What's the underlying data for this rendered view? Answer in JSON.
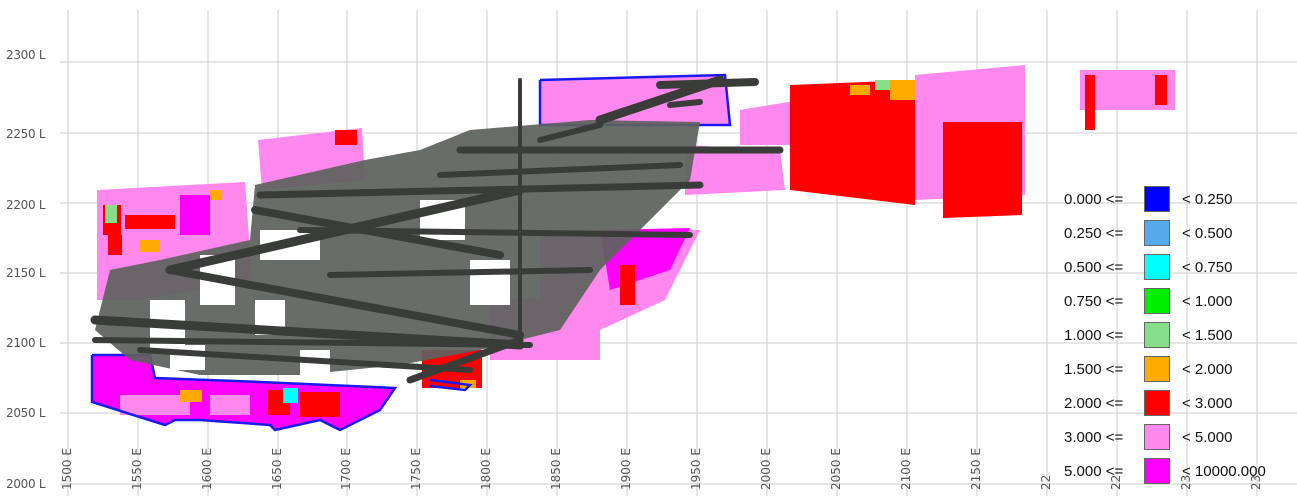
{
  "y_axis_labels": [
    "2300 L",
    "2250 L",
    "2200 L",
    "2150 L",
    "2100 L",
    "2050 L",
    "2000 L"
  ],
  "x_axis_labels": [
    "1500 E",
    "1550 E",
    "1600 E",
    "1650 E",
    "1700 E",
    "1750 E",
    "1800 E",
    "1850 E",
    "1900 E",
    "1950 E",
    "2000 E",
    "2050 E",
    "2100 E",
    "2150 E",
    "22",
    "22",
    "23",
    "23"
  ],
  "legend": [
    {
      "lo": "0.000 <=",
      "hi": "< 0.250",
      "color": "#0000ff"
    },
    {
      "lo": "0.250 <=",
      "hi": "< 0.500",
      "color": "#55aaee"
    },
    {
      "lo": "0.500 <=",
      "hi": "< 0.750",
      "color": "#00ffff"
    },
    {
      "lo": "0.750 <=",
      "hi": "< 1.000",
      "color": "#00ee00"
    },
    {
      "lo": "1.000 <=",
      "hi": "< 1.500",
      "color": "#88dd88"
    },
    {
      "lo": "1.500 <=",
      "hi": "< 2.000",
      "color": "#ffaa00"
    },
    {
      "lo": "2.000 <=",
      "hi": "< 3.000",
      "color": "#ff0000"
    },
    {
      "lo": "3.000 <=",
      "hi": "< 5.000",
      "color": "#ff88ee"
    },
    {
      "lo": "5.000 <=",
      "hi": "< 10000.000",
      "color": "#ff00ff"
    }
  ],
  "colors": {
    "grid": "#cccccc",
    "stope": "#5e625e",
    "drive": "#3a3c3a",
    "outline": "#1a1aee",
    "magenta": "#ff00ff",
    "pink": "#ff88ee",
    "red": "#ff0000",
    "orange": "#ffaa00",
    "lightgreen": "#88dd88",
    "cyan": "#00ffff"
  }
}
